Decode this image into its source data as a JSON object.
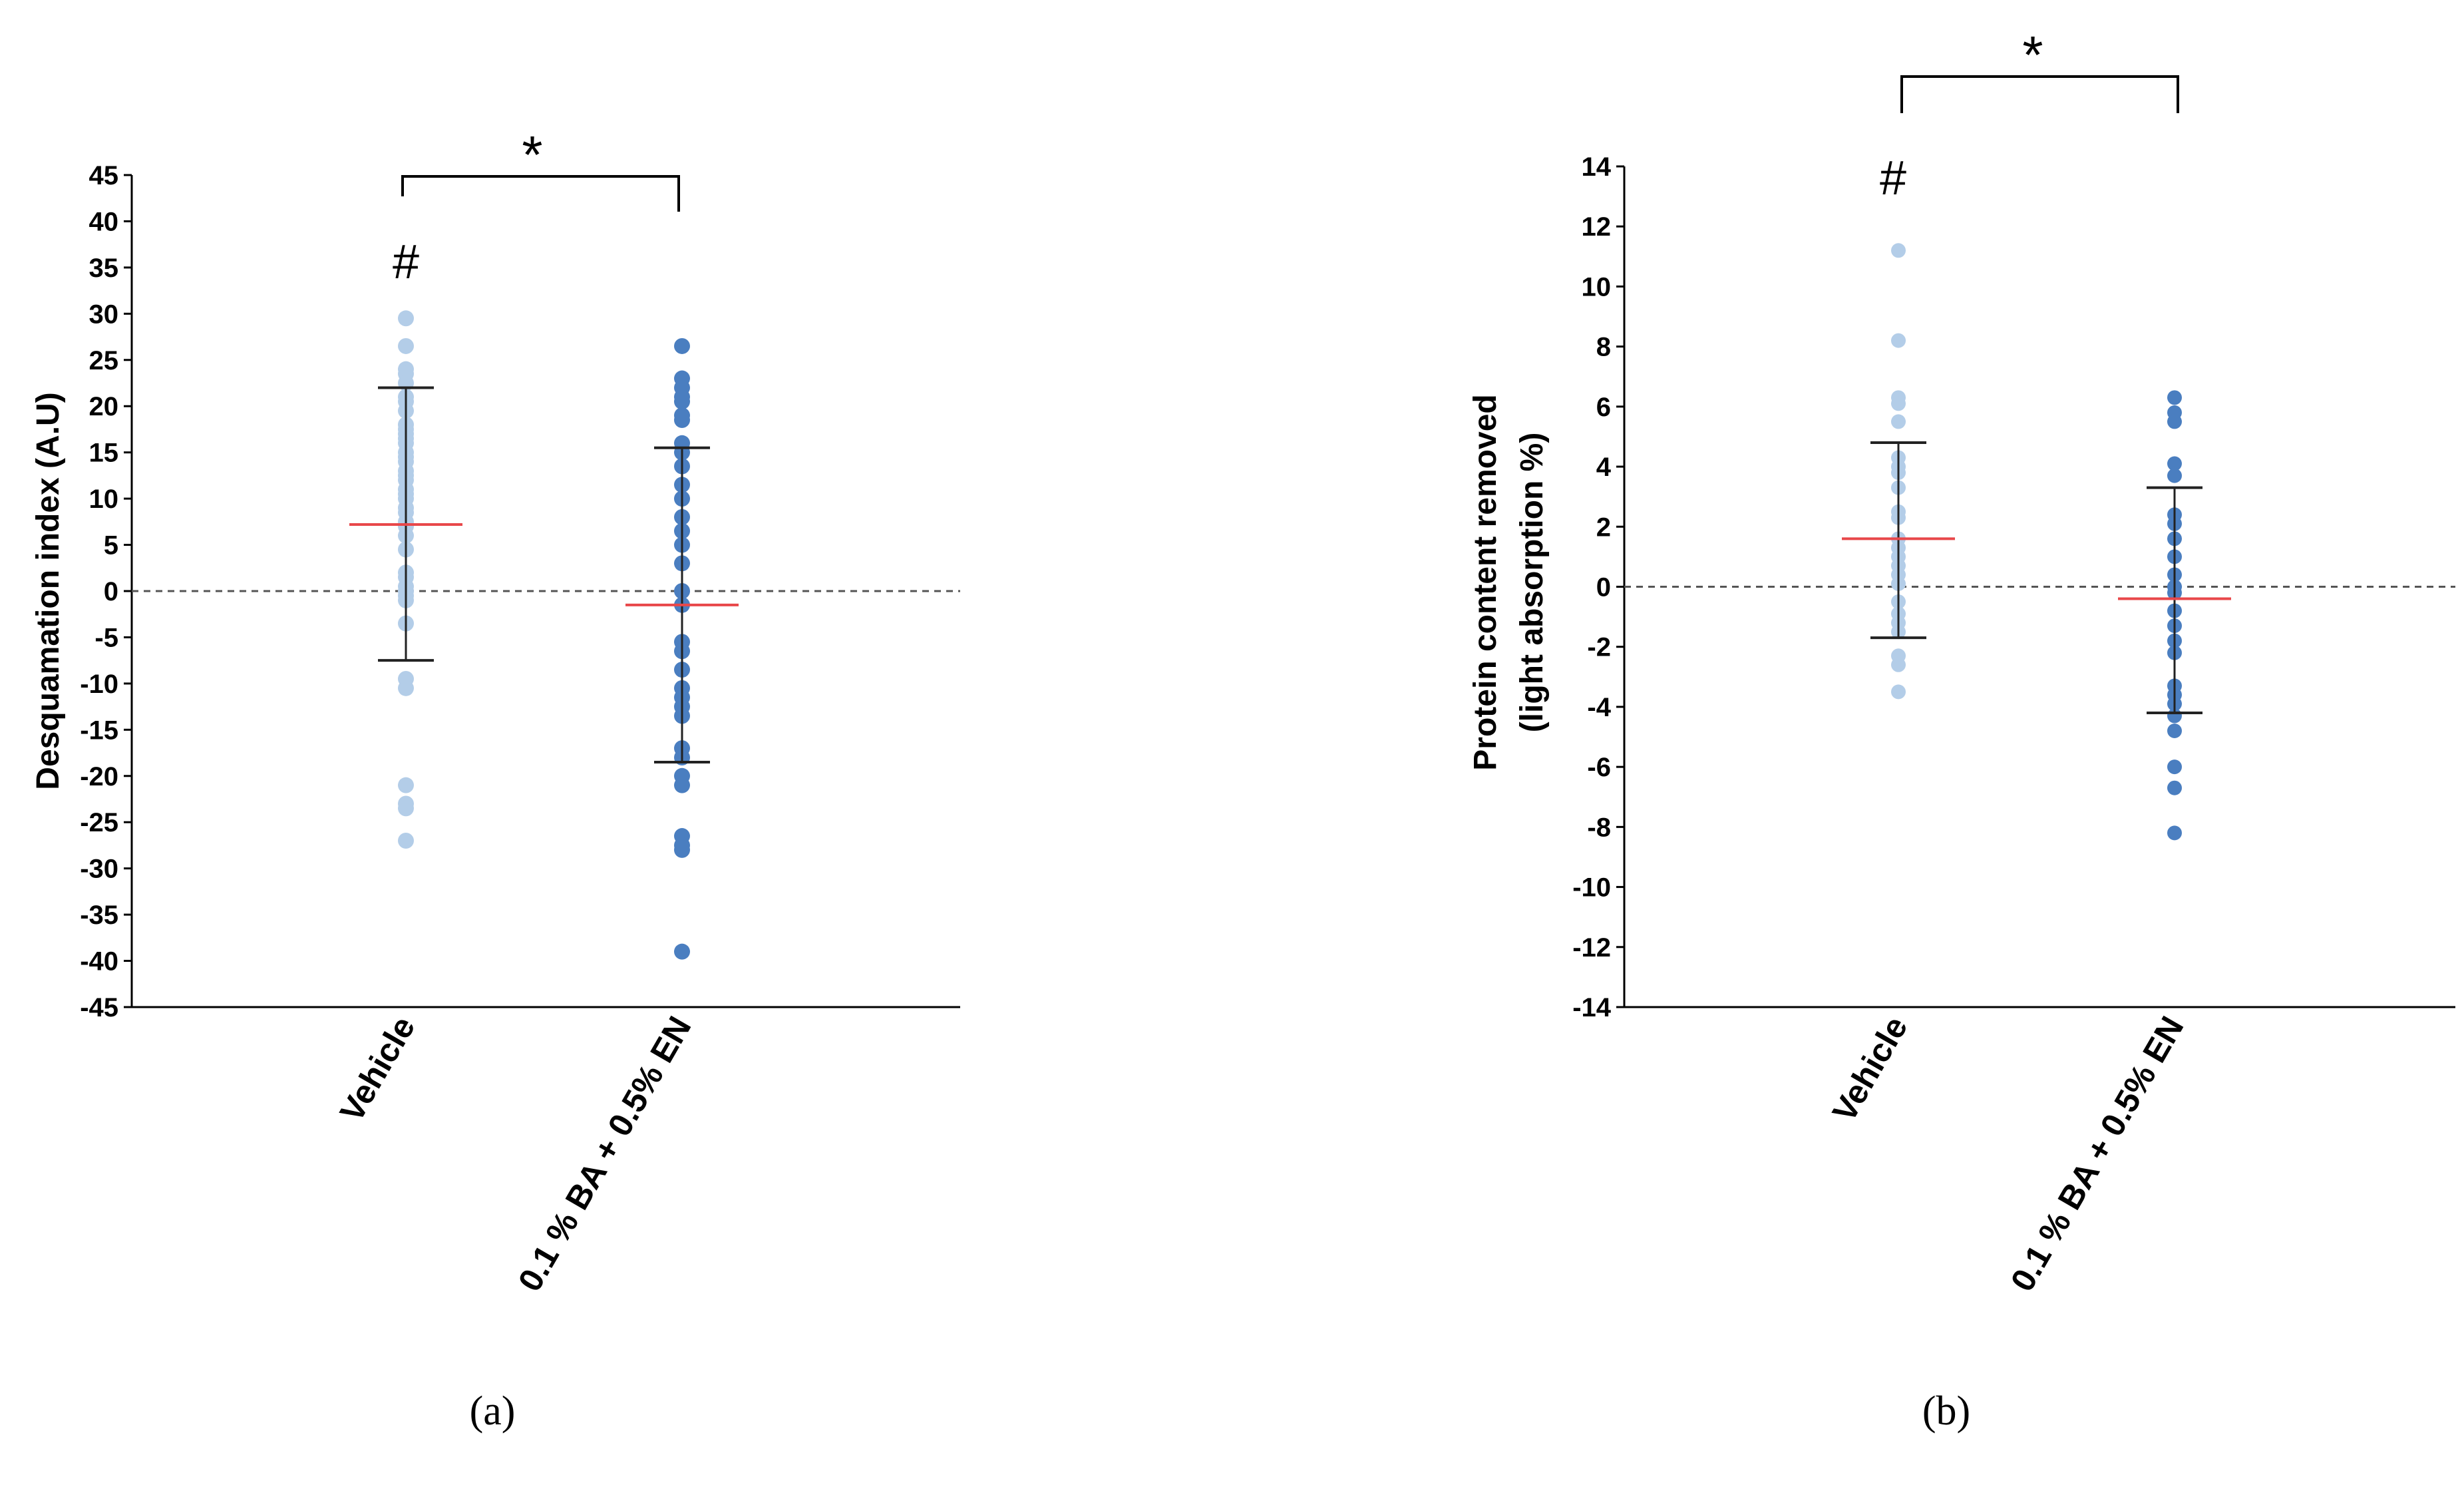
{
  "chart_data": [
    {
      "type": "scatter",
      "panel_label": "(a)",
      "ylabel": "Desquamation index (A.U)",
      "xlabel": "",
      "ylim": [
        -45,
        45
      ],
      "yticks": [
        45,
        40,
        35,
        30,
        25,
        20,
        15,
        10,
        5,
        0,
        -5,
        -10,
        -15,
        -20,
        -25,
        -30,
        -35,
        -40,
        -45
      ],
      "categories": [
        "Vehicle",
        "0.1 % BA + 0.5% EN"
      ],
      "reference_line": 0,
      "significance": {
        "bracket_label": "*",
        "marker": "#"
      },
      "colors": {
        "vehicle": "#b3cde8",
        "treatment": "#4a7ec0",
        "mean": "#e8474a",
        "sd": "#222222"
      },
      "series": [
        {
          "name": "Vehicle",
          "values": [
            29.5,
            26.5,
            24,
            23.5,
            22.5,
            21,
            20.5,
            19.5,
            18,
            17.5,
            17,
            16.5,
            16,
            15,
            14.5,
            14,
            13,
            12.5,
            12,
            11,
            10.5,
            10,
            9,
            8.5,
            7.5,
            7,
            6,
            4.5,
            2,
            1.5,
            0.5,
            0,
            -0.5,
            -1,
            -3.5,
            -9.5,
            -10.5,
            -21,
            -23,
            -23.5,
            -27
          ],
          "mean": 7.2,
          "sd_upper": 22,
          "sd_lower": -7.5
        },
        {
          "name": "0.1 % BA + 0.5% EN",
          "values": [
            26.5,
            23,
            22,
            21,
            20.5,
            19,
            18.5,
            16,
            15,
            13.5,
            11.5,
            10,
            8,
            6.5,
            5,
            3,
            0,
            -1.5,
            -5.5,
            -6.5,
            -8.5,
            -10.5,
            -11.5,
            -12.5,
            -13.5,
            -17,
            -18,
            -20,
            -21,
            -26.5,
            -27.5,
            -28,
            -39
          ],
          "mean": -1.5,
          "sd_upper": 15.5,
          "sd_lower": -18.5
        }
      ]
    },
    {
      "type": "scatter",
      "panel_label": "(b)",
      "ylabel_lines": [
        "Protein content removed",
        "(light absorption %)"
      ],
      "xlabel": "",
      "ylim": [
        -14,
        14
      ],
      "yticks": [
        14,
        12,
        10,
        8,
        6,
        4,
        2,
        0,
        -2,
        -4,
        -6,
        -8,
        -10,
        -12,
        -14
      ],
      "categories": [
        "Vehicle",
        "0.1 % BA + 0.5% EN"
      ],
      "reference_line": 0,
      "significance": {
        "bracket_label": "*",
        "marker": "#"
      },
      "colors": {
        "vehicle": "#b3cde8",
        "treatment": "#4a7ec0",
        "mean": "#e8474a",
        "sd": "#222222"
      },
      "series": [
        {
          "name": "Vehicle",
          "values": [
            11.2,
            8.2,
            6.3,
            6.1,
            5.5,
            4.3,
            4.0,
            3.8,
            3.3,
            2.5,
            2.3,
            1.6,
            1.3,
            1.0,
            0.7,
            0.4,
            0.1,
            -0.5,
            -0.9,
            -1.2,
            -1.5,
            -2.3,
            -2.6,
            -3.5
          ],
          "mean": 1.6,
          "sd_upper": 4.8,
          "sd_lower": -1.7
        },
        {
          "name": "0.1 % BA + 0.5% EN",
          "values": [
            6.3,
            5.8,
            5.5,
            4.1,
            3.7,
            2.4,
            2.1,
            1.6,
            1.0,
            0.4,
            0.0,
            -0.2,
            -0.8,
            -1.3,
            -1.8,
            -2.2,
            -3.3,
            -3.6,
            -3.9,
            -4.3,
            -4.8,
            -6.0,
            -6.7,
            -8.2
          ],
          "mean": -0.4,
          "sd_upper": 3.3,
          "sd_lower": -4.2
        }
      ]
    }
  ]
}
